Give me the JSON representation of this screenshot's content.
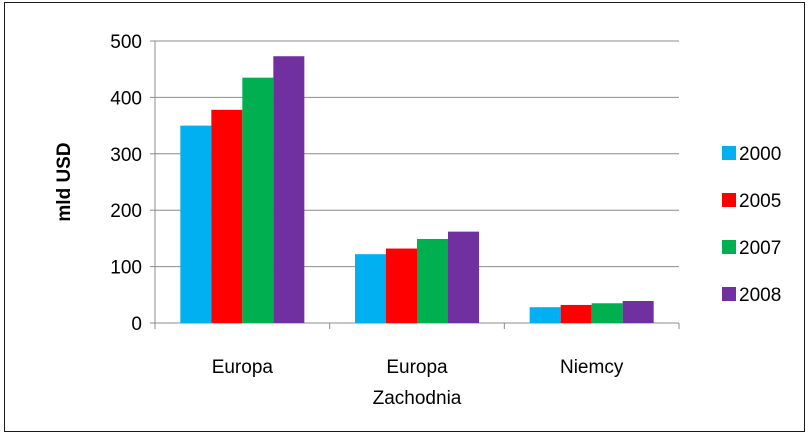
{
  "chart_data": {
    "type": "bar",
    "title": "",
    "xlabel": "",
    "ylabel": "mld  USD",
    "ylim": [
      0,
      500
    ],
    "yticks": [
      0,
      100,
      200,
      300,
      400,
      500
    ],
    "grid": true,
    "legend_position": "right",
    "categories": [
      [
        "Europa"
      ],
      [
        "Europa",
        "Zachodnia"
      ],
      [
        "Niemcy"
      ]
    ],
    "series": [
      {
        "name": "2000",
        "color": "#00B0F0",
        "values": [
          350,
          122,
          28
        ]
      },
      {
        "name": "2005",
        "color": "#FF0000",
        "values": [
          378,
          132,
          32
        ]
      },
      {
        "name": "2007",
        "color": "#00B050",
        "values": [
          435,
          149,
          35
        ]
      },
      {
        "name": "2008",
        "color": "#7030A0",
        "values": [
          473,
          162,
          39
        ]
      }
    ]
  }
}
